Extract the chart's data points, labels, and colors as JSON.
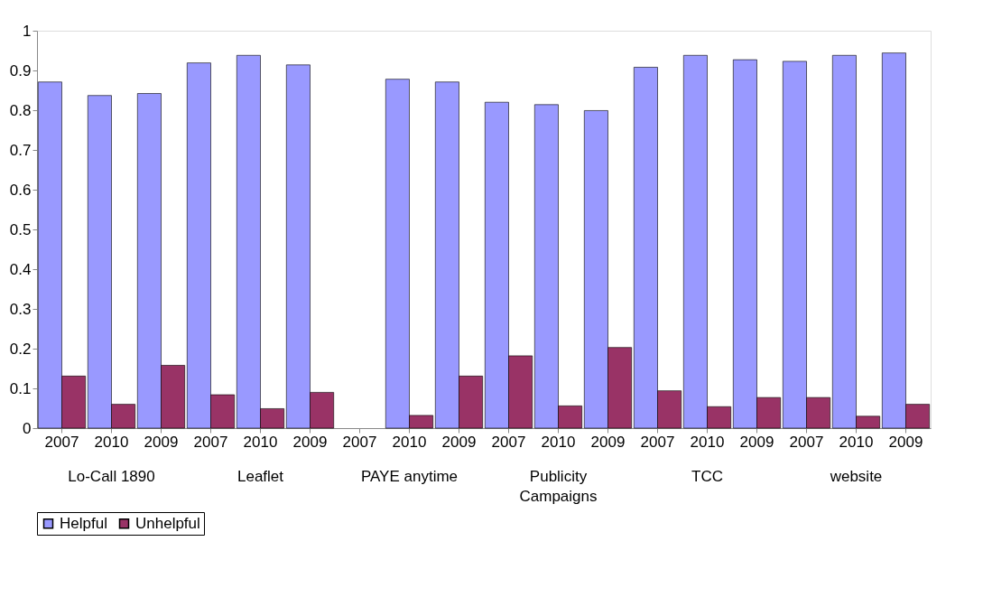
{
  "chart_data": {
    "type": "bar",
    "categories": [
      "2007",
      "2010",
      "2009",
      "2007",
      "2010",
      "2009",
      "2007",
      "2010",
      "2009",
      "2007",
      "2010",
      "2009",
      "2007",
      "2010",
      "2009",
      "2007",
      "2010",
      "2009"
    ],
    "series": [
      {
        "name": "Helpful",
        "color": "#9999ff",
        "values": [
          0.871,
          0.837,
          0.842,
          0.919,
          0.938,
          0.914,
          null,
          0.878,
          0.871,
          0.82,
          0.814,
          0.799,
          0.908,
          0.938,
          0.927,
          0.923,
          0.938,
          0.944
        ]
      },
      {
        "name": "Unhelpful",
        "color": "#993366",
        "values": [
          0.131,
          0.06,
          0.158,
          0.084,
          0.049,
          0.09,
          null,
          0.032,
          0.131,
          0.182,
          0.056,
          0.203,
          0.094,
          0.054,
          0.077,
          0.077,
          0.03,
          0.06
        ]
      }
    ],
    "annotations": [
      "Lo-Call 1890",
      "Leaflet",
      "PAYE anytime",
      "Publicity Campaigns",
      "TCC",
      "website"
    ],
    "ylim": [
      0,
      1
    ],
    "yticks": [
      0,
      0.1,
      0.2,
      0.3,
      0.4,
      0.5,
      0.6,
      0.7,
      0.8,
      0.9,
      1
    ],
    "grid": false,
    "legend": "bottom"
  }
}
